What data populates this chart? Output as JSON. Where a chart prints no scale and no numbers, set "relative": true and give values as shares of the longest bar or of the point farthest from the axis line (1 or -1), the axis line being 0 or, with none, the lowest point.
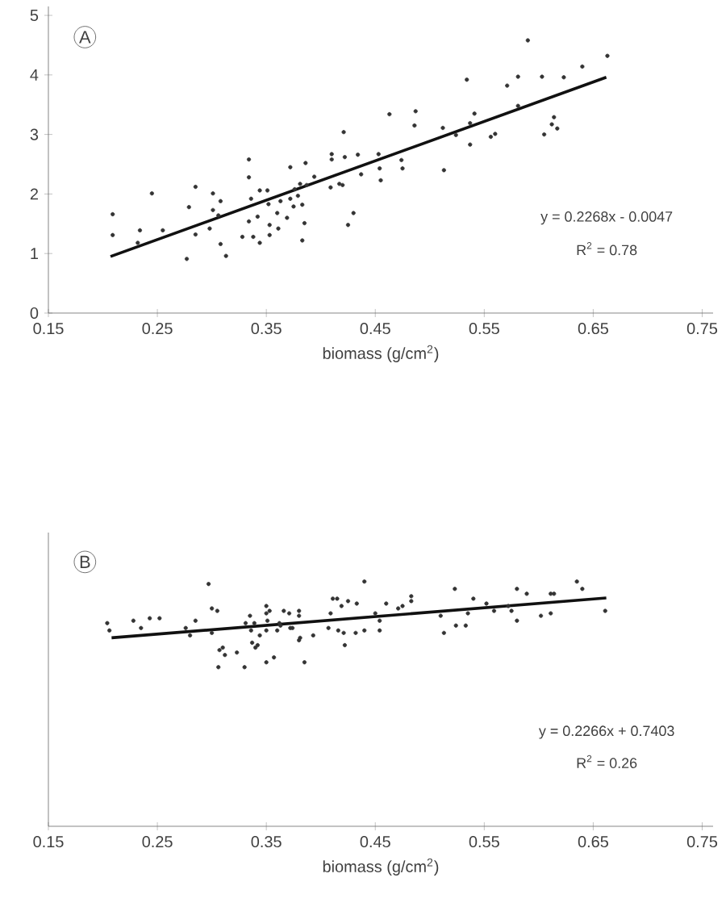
{
  "chart_data": [
    {
      "type": "scatter",
      "xlabel": "biomass (g/cm$^{2}$)",
      "xlim": [
        0.15,
        0.76
      ],
      "xticks": [
        0.15,
        0.25,
        0.35,
        0.45,
        0.55,
        0.65,
        0.75
      ],
      "ylim": [
        0,
        5.15
      ],
      "yticks": [
        0,
        1,
        2,
        3,
        4,
        5
      ],
      "annotations": [
        "A",
        "y = 0.2268x - 0.0047",
        "R$^{2}$ = 0.78"
      ],
      "series": [
        {
          "color": "#333333",
          "marker": "circle",
          "x": [
            0.209,
            0.209,
            0.234,
            0.232,
            0.245,
            0.255,
            0.277,
            0.279,
            0.285,
            0.285,
            0.298,
            0.301,
            0.301,
            0.306,
            0.308,
            0.308,
            0.313,
            0.328,
            0.334,
            0.334,
            0.334,
            0.336,
            0.338,
            0.342,
            0.344,
            0.344,
            0.351,
            0.352,
            0.353,
            0.353,
            0.36,
            0.361,
            0.363,
            0.369,
            0.372,
            0.372,
            0.375,
            0.376,
            0.379,
            0.381,
            0.383,
            0.383,
            0.385,
            0.386,
            0.387,
            0.394,
            0.409,
            0.41,
            0.41,
            0.417,
            0.42,
            0.421,
            0.422,
            0.425,
            0.43,
            0.434,
            0.437,
            0.453,
            0.454,
            0.455,
            0.463,
            0.474,
            0.475,
            0.487,
            0.486,
            0.512,
            0.513,
            0.524,
            0.534,
            0.537,
            0.537,
            0.541,
            0.556,
            0.56,
            0.571,
            0.581,
            0.581,
            0.59,
            0.603,
            0.605,
            0.614,
            0.612,
            0.617,
            0.623,
            0.64,
            0.663
          ],
          "values": [
            1.66,
            1.31,
            1.39,
            1.18,
            2.01,
            1.39,
            0.91,
            1.78,
            2.12,
            1.32,
            1.42,
            2.01,
            1.73,
            1.64,
            1.88,
            1.16,
            0.96,
            1.28,
            2.58,
            2.28,
            1.54,
            1.92,
            1.28,
            1.62,
            2.06,
            1.18,
            2.06,
            1.83,
            1.48,
            1.31,
            1.68,
            1.42,
            1.88,
            1.6,
            2.45,
            1.92,
            1.79,
            2.08,
            1.97,
            2.17,
            1.22,
            1.82,
            1.51,
            2.52,
            2.15,
            2.29,
            2.11,
            2.67,
            2.58,
            2.17,
            2.15,
            3.04,
            2.62,
            1.48,
            1.68,
            2.66,
            2.33,
            2.67,
            2.43,
            2.23,
            3.34,
            2.57,
            2.43,
            3.39,
            3.15,
            3.11,
            2.4,
            2.99,
            3.92,
            3.19,
            2.83,
            3.35,
            2.96,
            3.01,
            3.82,
            3.97,
            3.48,
            4.58,
            3.97,
            3.0,
            3.29,
            3.17,
            3.1,
            3.96,
            4.14,
            4.32
          ]
        },
        {
          "type": "line",
          "color": "#111111",
          "marker": "none",
          "x": [
            0.207,
            0.662
          ],
          "values": [
            0.95,
            3.96
          ]
        }
      ]
    },
    {
      "type": "scatter",
      "relative": true,
      "xlabel": "biomass (g/cm$^{2}$)",
      "xlim": [
        0.15,
        0.76
      ],
      "xticks": [
        0.15,
        0.25,
        0.35,
        0.45,
        0.55,
        0.65,
        0.75
      ],
      "annotations": [
        "B",
        "y = 0.2266x + 0.7403",
        "R$^{2}$ = 0.26"
      ],
      "series": [
        {
          "color": "#333333",
          "marker": "circle",
          "x": [
            0.204,
            0.206,
            0.228,
            0.235,
            0.243,
            0.252,
            0.276,
            0.28,
            0.285,
            0.297,
            0.3,
            0.3,
            0.305,
            0.306,
            0.307,
            0.31,
            0.312,
            0.323,
            0.33,
            0.331,
            0.335,
            0.336,
            0.337,
            0.339,
            0.34,
            0.342,
            0.344,
            0.35,
            0.35,
            0.35,
            0.35,
            0.351,
            0.353,
            0.357,
            0.36,
            0.362,
            0.363,
            0.366,
            0.371,
            0.372,
            0.374,
            0.38,
            0.38,
            0.38,
            0.381,
            0.385,
            0.393,
            0.407,
            0.409,
            0.411,
            0.415,
            0.416,
            0.419,
            0.421,
            0.422,
            0.425,
            0.432,
            0.433,
            0.44,
            0.44,
            0.45,
            0.454,
            0.454,
            0.46,
            0.471,
            0.475,
            0.483,
            0.483,
            0.51,
            0.513,
            0.523,
            0.524,
            0.533,
            0.535,
            0.54,
            0.552,
            0.559,
            0.572,
            0.575,
            0.58,
            0.58,
            0.589,
            0.602,
            0.611,
            0.611,
            0.614,
            0.635,
            0.64,
            0.661
          ],
          "values": [
            0.83,
            0.8,
            0.84,
            0.81,
            0.85,
            0.85,
            0.81,
            0.78,
            0.84,
            0.99,
            0.79,
            0.89,
            0.88,
            0.65,
            0.72,
            0.73,
            0.7,
            0.71,
            0.65,
            0.83,
            0.86,
            0.8,
            0.75,
            0.83,
            0.73,
            0.74,
            0.78,
            0.9,
            0.87,
            0.8,
            0.67,
            0.84,
            0.88,
            0.69,
            0.8,
            0.83,
            0.82,
            0.88,
            0.87,
            0.81,
            0.81,
            0.88,
            0.86,
            0.76,
            0.77,
            0.67,
            0.78,
            0.81,
            0.87,
            0.93,
            0.93,
            0.8,
            0.9,
            0.79,
            0.74,
            0.92,
            0.79,
            0.91,
            1.0,
            0.8,
            0.87,
            0.84,
            0.8,
            0.91,
            0.89,
            0.9,
            0.94,
            0.92,
            0.86,
            0.79,
            0.97,
            0.82,
            0.82,
            0.87,
            0.93,
            0.91,
            0.88,
            0.9,
            0.88,
            0.97,
            0.84,
            0.95,
            0.86,
            0.87,
            0.95,
            0.95,
            1.0,
            0.97,
            0.88
          ]
        },
        {
          "type": "line",
          "color": "#111111",
          "marker": "none",
          "x": [
            0.208,
            0.662
          ],
          "values": [
            0.77,
            0.933
          ]
        }
      ]
    }
  ]
}
